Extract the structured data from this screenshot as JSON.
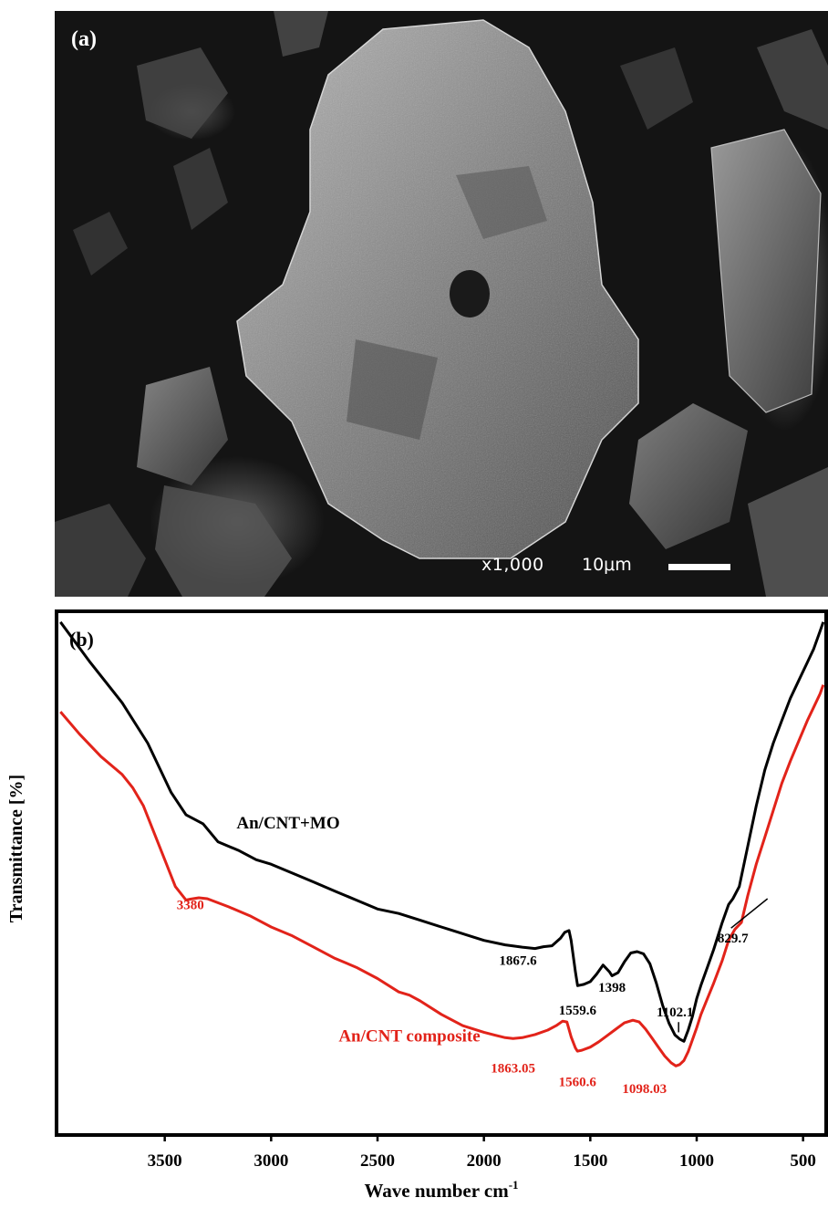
{
  "panel_a": {
    "label": "(a)",
    "magnification": "x1,000",
    "scale_label": "10μm"
  },
  "chart_data": {
    "type": "line",
    "panel_label": "(b)",
    "xlabel": "Wave number cm",
    "xlabel_superscript": "-1",
    "ylabel": "Transmittance [%]",
    "x_reversed": true,
    "xlim": [
      4000,
      400
    ],
    "ylim": [
      0,
      100
    ],
    "x_ticks": [
      3500,
      3000,
      2500,
      2000,
      1500,
      1000,
      500
    ],
    "x_tick_labels": [
      "3500",
      "3000",
      "2500",
      "2000",
      "1500",
      "1000",
      "500"
    ],
    "y_tick_labels_shown": false,
    "grid": false,
    "series": [
      {
        "name": "An/CNT+MO",
        "color": "#000000",
        "x": [
          3990,
          3850,
          3700,
          3580,
          3470,
          3400,
          3320,
          3250,
          3150,
          3070,
          3000,
          2900,
          2800,
          2700,
          2600,
          2500,
          2400,
          2300,
          2200,
          2100,
          2000,
          1900,
          1867.6,
          1820,
          1760,
          1720,
          1680,
          1640,
          1620,
          1600,
          1590,
          1570,
          1559.6,
          1530,
          1500,
          1470,
          1440,
          1410,
          1398,
          1370,
          1340,
          1310,
          1280,
          1250,
          1220,
          1190,
          1160,
          1130,
          1102.1,
          1080,
          1060,
          1040,
          1020,
          1000,
          980,
          950,
          920,
          880,
          850,
          829.7,
          800,
          760,
          720,
          680,
          640,
          600,
          560,
          520,
          480,
          450,
          420,
          405
        ],
        "y": [
          100,
          91,
          82,
          73,
          62,
          57,
          55,
          51,
          49,
          47,
          46,
          44,
          42,
          40,
          38,
          36,
          35,
          33.5,
          32,
          30.5,
          29,
          28,
          27.8,
          27.5,
          27.2,
          27.6,
          27.8,
          29.5,
          30.8,
          31.2,
          29,
          22,
          18.9,
          19.2,
          19.8,
          21.5,
          23.5,
          22,
          21.1,
          21.8,
          24.2,
          26.2,
          26.5,
          26,
          23.8,
          19.5,
          14.5,
          10.5,
          7.9,
          7,
          6.5,
          9,
          12,
          16,
          19,
          23,
          27,
          33,
          37,
          38.3,
          41,
          50,
          59,
          67,
          73,
          78,
          83,
          87,
          91,
          94,
          98,
          100
        ]
      },
      {
        "name": "An/CNT composite",
        "color": "#e2231a",
        "x": [
          3990,
          3900,
          3800,
          3700,
          3650,
          3600,
          3550,
          3500,
          3450,
          3400,
          3380,
          3340,
          3300,
          3200,
          3100,
          3000,
          2900,
          2800,
          2700,
          2600,
          2500,
          2400,
          2350,
          2300,
          2200,
          2100,
          2000,
          1950,
          1900,
          1863.05,
          1820,
          1760,
          1700,
          1660,
          1630,
          1610,
          1590,
          1570,
          1560.6,
          1540,
          1500,
          1460,
          1420,
          1380,
          1340,
          1300,
          1270,
          1240,
          1210,
          1180,
          1150,
          1120,
          1098.03,
          1080,
          1060,
          1040,
          1020,
          1000,
          980,
          950,
          920,
          880,
          850,
          820,
          790,
          760,
          720,
          680,
          640,
          600,
          560,
          520,
          480,
          450,
          420,
          405
        ],
        "y": [
          80,
          75,
          70,
          66,
          63,
          59,
          53,
          47,
          41,
          38,
          38.2,
          38.5,
          38.3,
          36.5,
          34.5,
          32,
          30,
          27.5,
          25,
          23,
          20.5,
          17.5,
          16.8,
          15.5,
          12.5,
          10,
          8.5,
          7.9,
          7.3,
          7.1,
          7.3,
          8,
          9,
          10,
          11,
          10.8,
          7.5,
          5,
          4.3,
          4.5,
          5.2,
          6.4,
          7.8,
          9.2,
          10.6,
          11.2,
          10.8,
          9.2,
          7.2,
          5.2,
          3.2,
          1.7,
          1,
          1.3,
          2.2,
          4.2,
          6.8,
          9.5,
          12.5,
          16,
          19.5,
          24.5,
          29,
          31.5,
          33,
          39,
          46,
          52,
          58,
          64,
          69,
          73.5,
          78,
          81,
          84,
          86
        ]
      }
    ],
    "annotations": [
      {
        "text": "An/CNT+MO",
        "series": 0,
        "x": 2920,
        "y": 54
      },
      {
        "text": "3380",
        "series": 1,
        "x": 3380,
        "y": 36
      },
      {
        "text": "1867.6",
        "series": 0,
        "x": 1840,
        "y": 23.5
      },
      {
        "text": "1559.6",
        "series": 0,
        "x": 1559.6,
        "y": 12.5
      },
      {
        "text": "1398",
        "series": 0,
        "x": 1398,
        "y": 17.5
      },
      {
        "text": "1102.1",
        "series": 0,
        "x": 1102.1,
        "y": 12
      },
      {
        "text": "829.7",
        "series": 0,
        "x": 829.7,
        "y": 28.5,
        "leader_to_x": 829.7,
        "leader_to_y": 38.3
      },
      {
        "text": "An/CNT composite",
        "series": 1,
        "x": 2350,
        "y": 6.5
      },
      {
        "text": "1863.05",
        "series": 1,
        "x": 1863.05,
        "y": -0.5
      },
      {
        "text": "1560.6",
        "series": 1,
        "x": 1560.6,
        "y": -3.5
      },
      {
        "text": "1098.03",
        "series": 1,
        "x": 1245,
        "y": -5
      }
    ]
  }
}
